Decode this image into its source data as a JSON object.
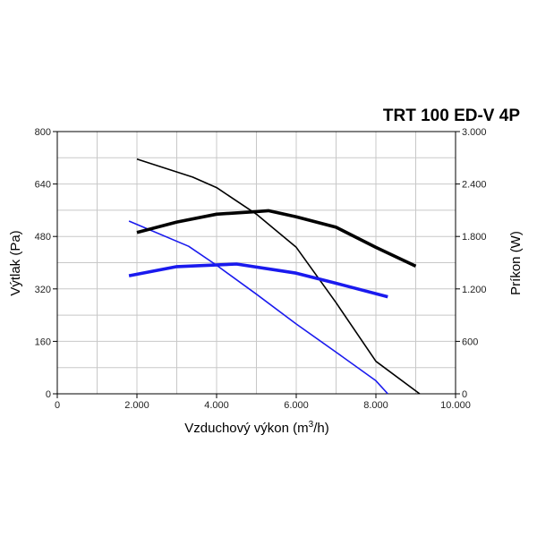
{
  "chart_data": {
    "type": "line",
    "title": "TRT 100 ED-V 4P",
    "xlabel": {
      "main": "Vzduchový výkon (m",
      "sup": "3",
      "tail": "/h)"
    },
    "ylabel": "Výtlak (Pa)",
    "y2label": "Príkon (W)",
    "xlim": [
      0,
      10000
    ],
    "ylim": [
      0,
      800
    ],
    "y2lim": [
      0,
      3000
    ],
    "x_ticks": [
      {
        "value": 0,
        "label": "0"
      },
      {
        "value": 2000,
        "label": "2.000"
      },
      {
        "value": 4000,
        "label": "4.000"
      },
      {
        "value": 6000,
        "label": "6.000"
      },
      {
        "value": 8000,
        "label": "8.000"
      },
      {
        "value": 10000,
        "label": "10.000"
      }
    ],
    "y_ticks": [
      {
        "value": 0,
        "label": "0"
      },
      {
        "value": 160,
        "label": "160"
      },
      {
        "value": 320,
        "label": "320"
      },
      {
        "value": 480,
        "label": "480"
      },
      {
        "value": 640,
        "label": "640"
      },
      {
        "value": 800,
        "label": "800"
      }
    ],
    "y2_ticks": [
      {
        "value": 0,
        "label": "0"
      },
      {
        "value": 600,
        "label": "600"
      },
      {
        "value": 1200,
        "label": "1.200"
      },
      {
        "value": 1800,
        "label": "1.800"
      },
      {
        "value": 2400,
        "label": "2.400"
      },
      {
        "value": 3000,
        "label": "3.000"
      }
    ],
    "grid": true,
    "series": [
      {
        "axis": "left",
        "color": "#000000",
        "weight": "thin",
        "points": [
          [
            2000,
            716
          ],
          [
            3400,
            661
          ],
          [
            4000,
            629
          ],
          [
            5000,
            548
          ],
          [
            6000,
            447
          ],
          [
            7000,
            278
          ],
          [
            8000,
            99
          ],
          [
            9100,
            0
          ]
        ]
      },
      {
        "axis": "left",
        "color": "#1a1aee",
        "weight": "thin",
        "points": [
          [
            1800,
            527
          ],
          [
            3300,
            450
          ],
          [
            4000,
            392
          ],
          [
            5000,
            304
          ],
          [
            6000,
            213
          ],
          [
            7000,
            127
          ],
          [
            8000,
            40
          ],
          [
            8300,
            0
          ]
        ]
      },
      {
        "axis": "right",
        "color": "#000000",
        "weight": "thick",
        "points": [
          [
            2000,
            1845
          ],
          [
            3000,
            1965
          ],
          [
            4000,
            2055
          ],
          [
            5000,
            2085
          ],
          [
            5300,
            2095
          ],
          [
            6000,
            2025
          ],
          [
            7000,
            1905
          ],
          [
            8000,
            1675
          ],
          [
            9000,
            1460
          ]
        ]
      },
      {
        "axis": "right",
        "color": "#1a1aee",
        "weight": "thick",
        "points": [
          [
            1800,
            1350
          ],
          [
            3000,
            1455
          ],
          [
            4500,
            1485
          ],
          [
            6000,
            1380
          ],
          [
            7000,
            1265
          ],
          [
            8300,
            1110
          ]
        ]
      }
    ]
  }
}
